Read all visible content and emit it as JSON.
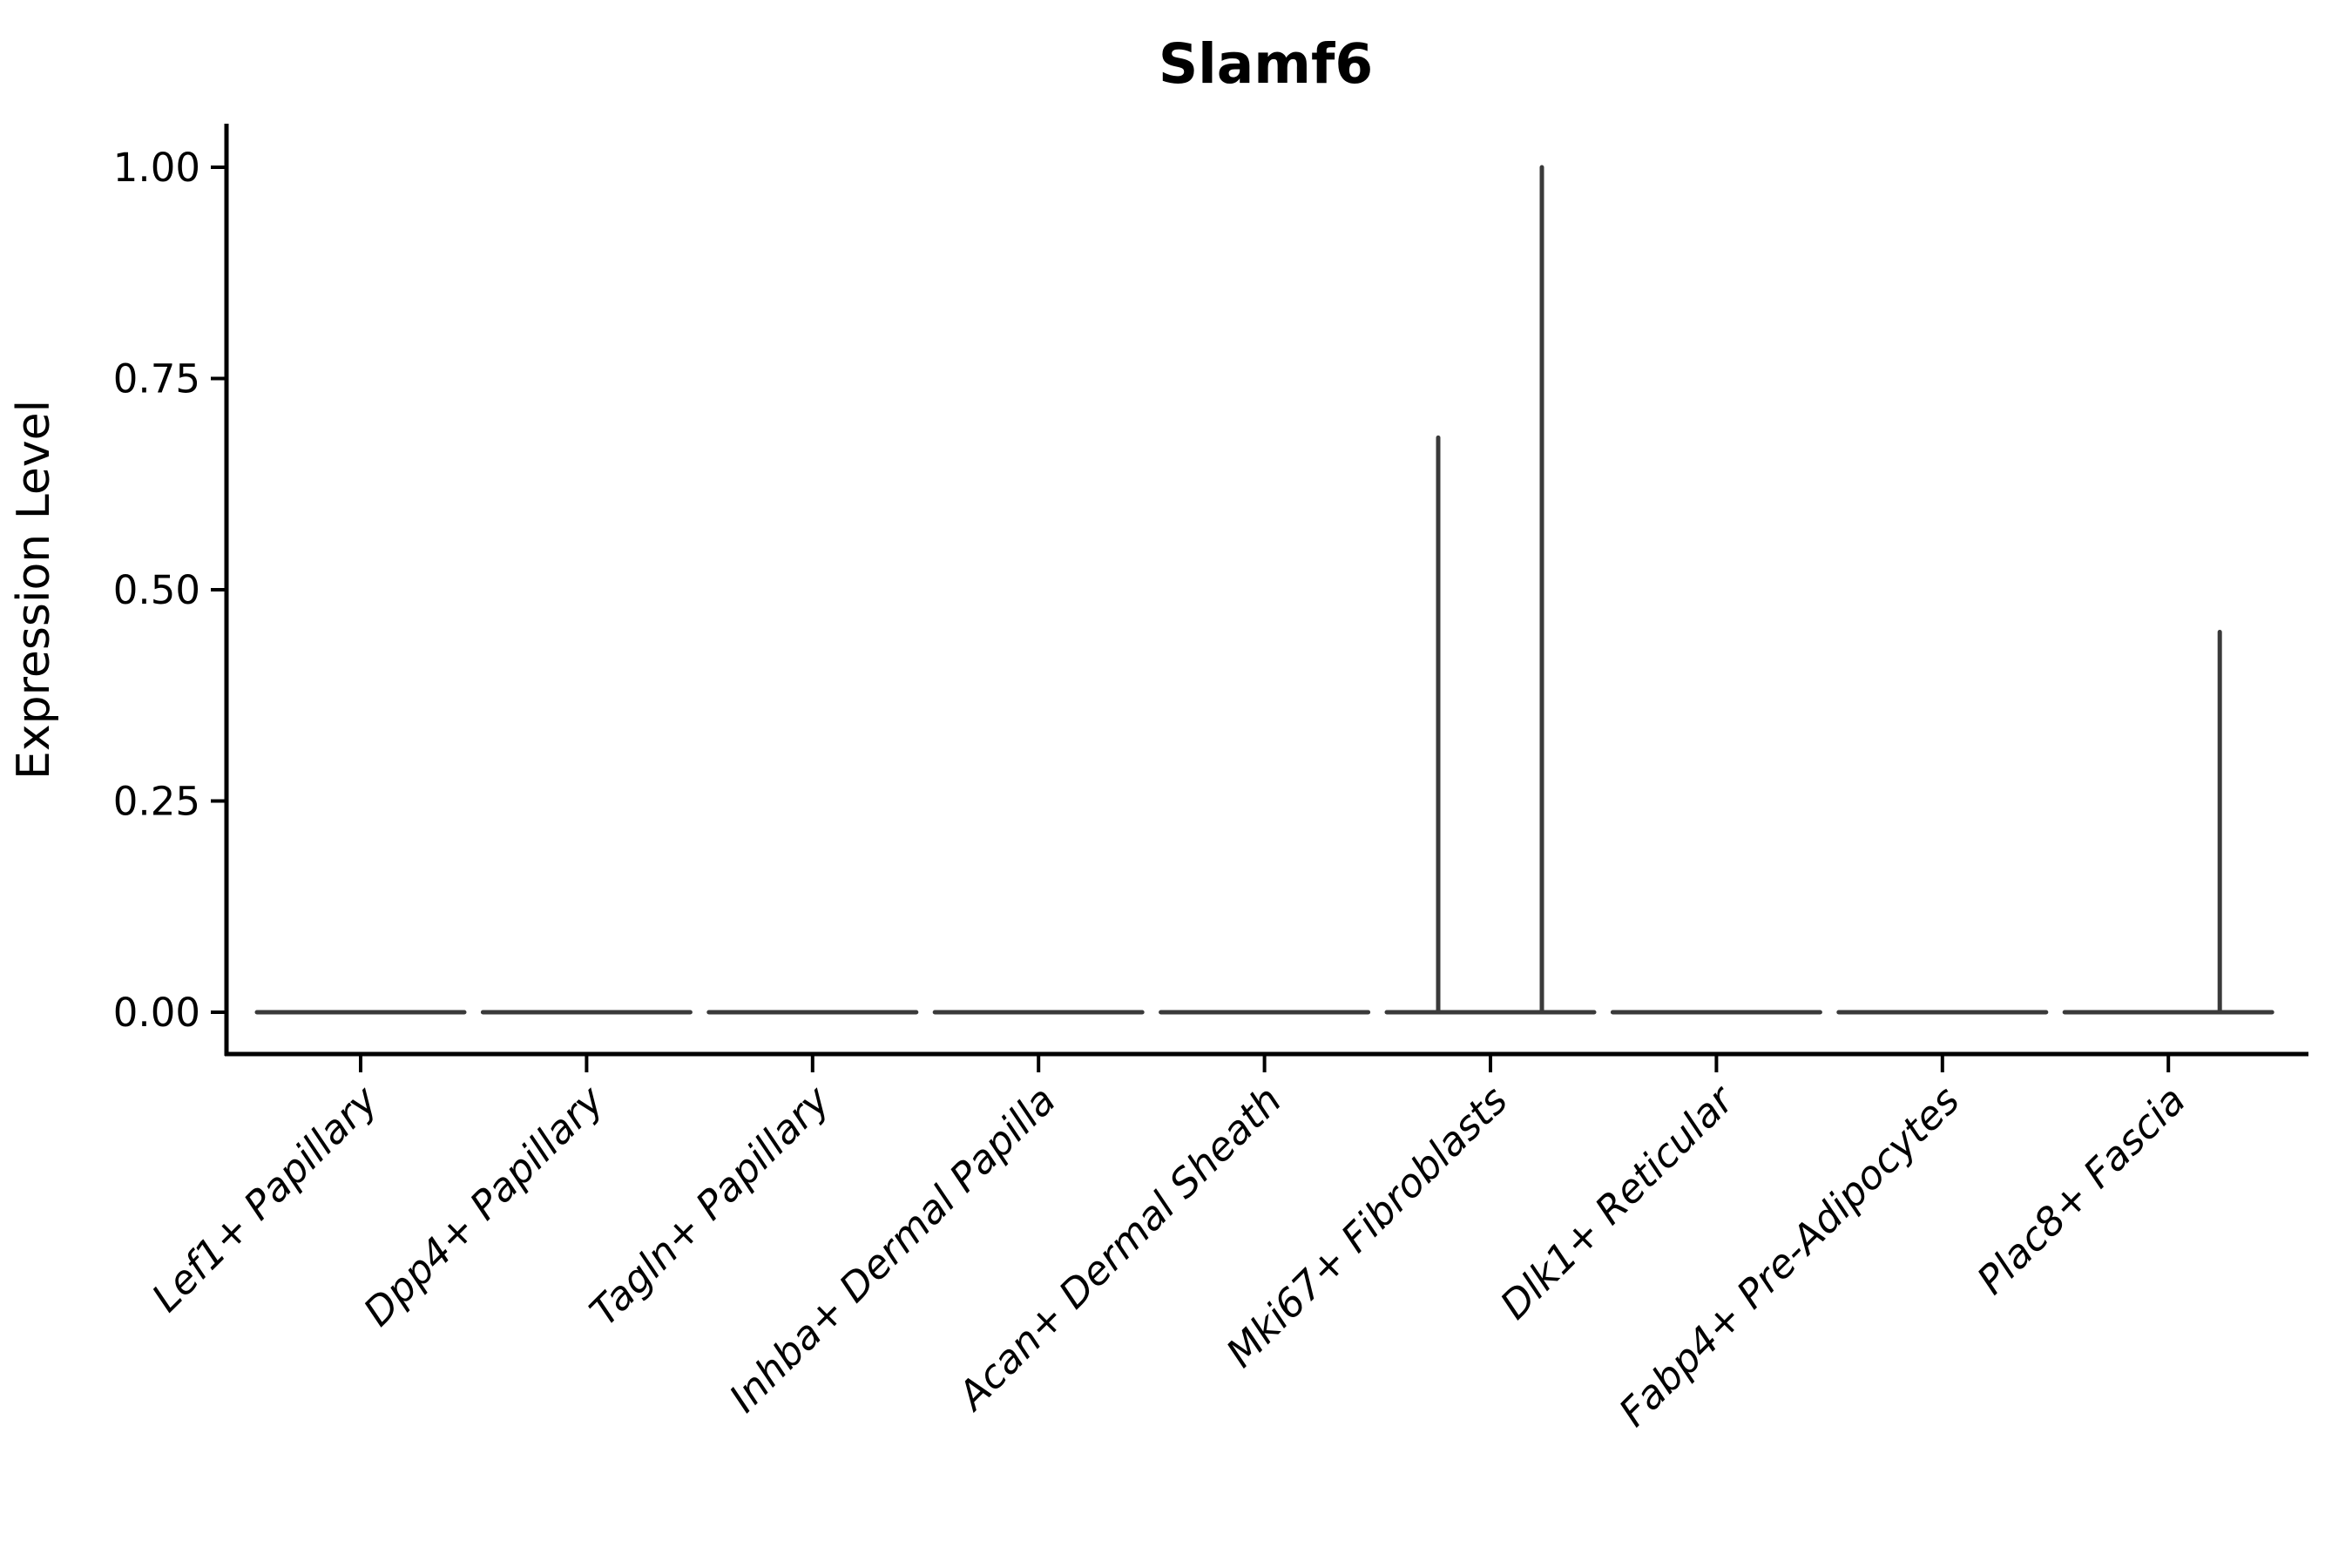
{
  "page": {
    "background": "#ffffff"
  },
  "chart_data": {
    "type": "violin",
    "title": "Slamf6",
    "ylabel": "Expression Level",
    "xlabel": "",
    "ylim": [
      0,
      1.05
    ],
    "yticks": [
      0,
      0.25,
      0.5,
      0.75,
      1.0
    ],
    "yticklabels": [
      "0.00",
      "0.25",
      "0.50",
      "0.75",
      "1.00"
    ],
    "x_tick_rotation_deg": 45,
    "grid": false,
    "legend": "none",
    "style": {
      "violin_stroke": "#3a3a3a",
      "axis_color": "#000000",
      "text_color": "#000000",
      "title_bold": true,
      "x_labels_italic": true
    },
    "categories": [
      "Lef1+ Papillary",
      "Dpp4+ Papillary",
      "Tagln+ Papillary",
      "Inhba+ Dermal Papilla",
      "Acan+ Dermal Sheath",
      "Mki67+ Fibroblasts",
      "Dlk1+ Reticular",
      "Fabp4+ Pre-Adipocytes",
      "Plac8+ Fascia"
    ],
    "violins": [
      {
        "category": "Lef1+ Papillary",
        "baseline_value": 0.0,
        "spikes": []
      },
      {
        "category": "Dpp4+ Papillary",
        "baseline_value": 0.0,
        "spikes": []
      },
      {
        "category": "Tagln+ Papillary",
        "baseline_value": 0.0,
        "spikes": []
      },
      {
        "category": "Inhba+ Dermal Papilla",
        "baseline_value": 0.0,
        "spikes": []
      },
      {
        "category": "Acan+ Dermal Sheath",
        "baseline_value": 0.0,
        "spikes": []
      },
      {
        "category": "Mki67+ Fibroblasts",
        "baseline_value": 0.0,
        "spikes": [
          {
            "position": "left-of-center",
            "max_value": 0.68
          },
          {
            "position": "right-of-center",
            "max_value": 1.0
          }
        ]
      },
      {
        "category": "Dlk1+ Reticular",
        "baseline_value": 0.0,
        "spikes": []
      },
      {
        "category": "Fabp4+ Pre-Adipocytes",
        "baseline_value": 0.0,
        "spikes": []
      },
      {
        "category": "Plac8+ Fascia",
        "baseline_value": 0.0,
        "spikes": [
          {
            "position": "right-of-center",
            "max_value": 0.45
          }
        ]
      }
    ]
  }
}
